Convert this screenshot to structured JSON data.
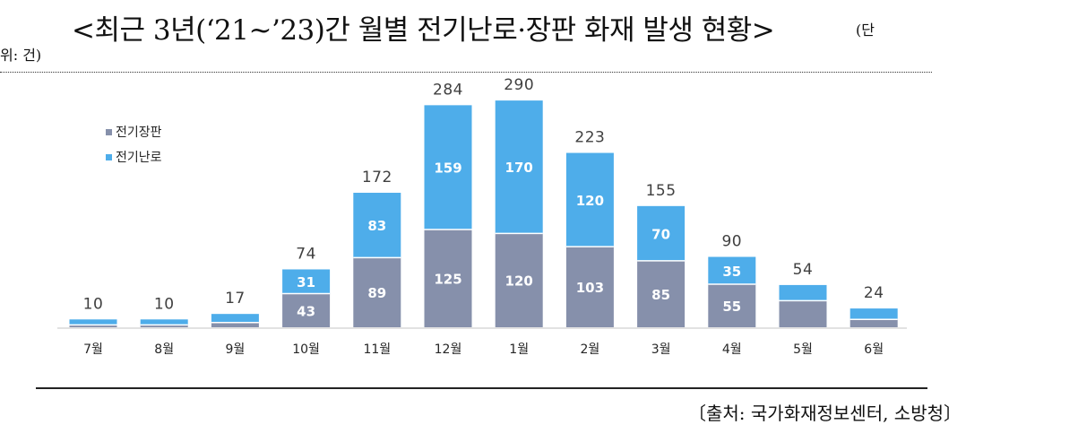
{
  "title": "<최근 3년(‘21~’23)간 월별 전기난로·장판 화재 발생 현황>",
  "unit_line1": "(단",
  "unit_line2": "위: 건)",
  "source": "〔출처: 국가화재정보센터, 소방청〕",
  "colors": {
    "blanket": "#8690AB",
    "heater": "#4EADEA",
    "axis": "#D9D9D9",
    "inner_label": "#FFFFFF",
    "total_label": "#404040"
  },
  "chart_data": {
    "type": "bar",
    "stacked": true,
    "categories": [
      "7월",
      "8월",
      "9월",
      "10월",
      "11월",
      "12월",
      "1월",
      "2월",
      "3월",
      "4월",
      "5월",
      "6월"
    ],
    "series": [
      {
        "name": "전기장판",
        "values": [
          3,
          3,
          6,
          43,
          89,
          125,
          120,
          103,
          85,
          55,
          34,
          10
        ],
        "labels": [
          "",
          "",
          "",
          "43",
          "89",
          "125",
          "120",
          "103",
          "85",
          "55",
          "",
          ""
        ]
      },
      {
        "name": "전기난로",
        "values": [
          7,
          7,
          11,
          31,
          83,
          159,
          170,
          120,
          70,
          35,
          20,
          14
        ],
        "labels": [
          "",
          "",
          "",
          "31",
          "83",
          "159",
          "170",
          "120",
          "70",
          "35",
          "",
          ""
        ]
      }
    ],
    "totals": [
      10,
      10,
      17,
      74,
      172,
      284,
      290,
      223,
      155,
      90,
      54,
      24
    ],
    "ylim": [
      0,
      300
    ],
    "legend_position": "top-left",
    "grid": false
  }
}
